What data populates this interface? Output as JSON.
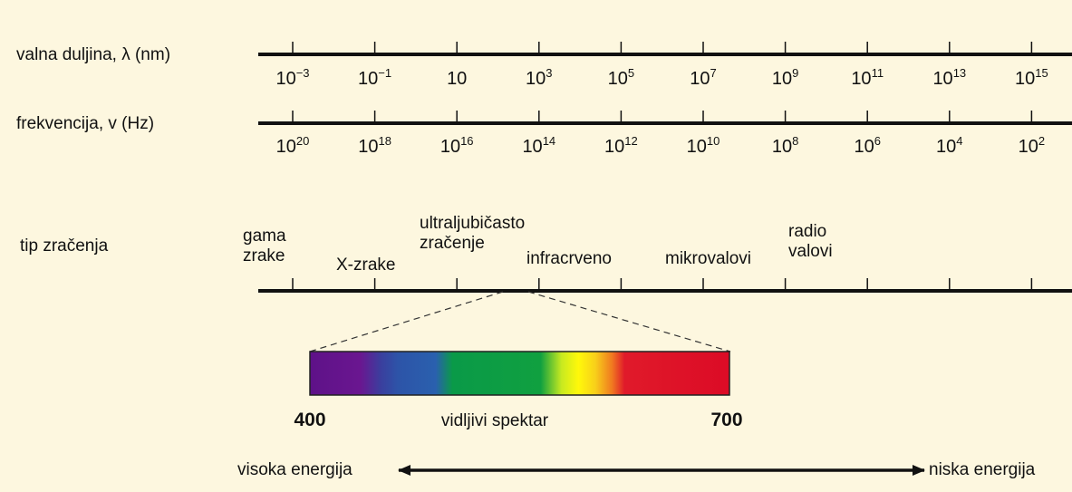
{
  "rows": {
    "wavelength_label": "valna duljina, λ (nm)",
    "frequency_label": "frekvencija, v (Hz)",
    "type_label": "tip zračenja"
  },
  "wavelength_ticks": [
    {
      "base": "10",
      "exp": "−3"
    },
    {
      "base": "10",
      "exp": "−1"
    },
    {
      "base": "10",
      "exp": ""
    },
    {
      "base": "10",
      "exp": "3"
    },
    {
      "base": "10",
      "exp": "5"
    },
    {
      "base": "10",
      "exp": "7"
    },
    {
      "base": "10",
      "exp": "9"
    },
    {
      "base": "10",
      "exp": "11"
    },
    {
      "base": "10",
      "exp": "13"
    },
    {
      "base": "10",
      "exp": "15"
    }
  ],
  "frequency_ticks": [
    {
      "base": "10",
      "exp": "20"
    },
    {
      "base": "10",
      "exp": "18"
    },
    {
      "base": "10",
      "exp": "16"
    },
    {
      "base": "10",
      "exp": "14"
    },
    {
      "base": "10",
      "exp": "12"
    },
    {
      "base": "10",
      "exp": "10"
    },
    {
      "base": "10",
      "exp": "8"
    },
    {
      "base": "10",
      "exp": "6"
    },
    {
      "base": "10",
      "exp": "4"
    },
    {
      "base": "10",
      "exp": "2"
    }
  ],
  "radiation_types": {
    "gamma": "gama\nzrake",
    "xray": "X-zrake",
    "uv": "ultraljubičasto\nzračenje",
    "ir": "infracrveno",
    "micro": "mikrovalovi",
    "radio": "radio\nvalovi"
  },
  "spectrum": {
    "start": "400",
    "end": "700",
    "title": "vidljivi spektar",
    "colors": [
      "#6a1590",
      "#2f55a8",
      "#0a9a48",
      "#f7f208",
      "#f08a1c",
      "#e0102a"
    ]
  },
  "energy": {
    "high": "visoka energija",
    "low": "niska energija"
  },
  "colors": {
    "background": "#fdf7df",
    "line": "#111111"
  }
}
